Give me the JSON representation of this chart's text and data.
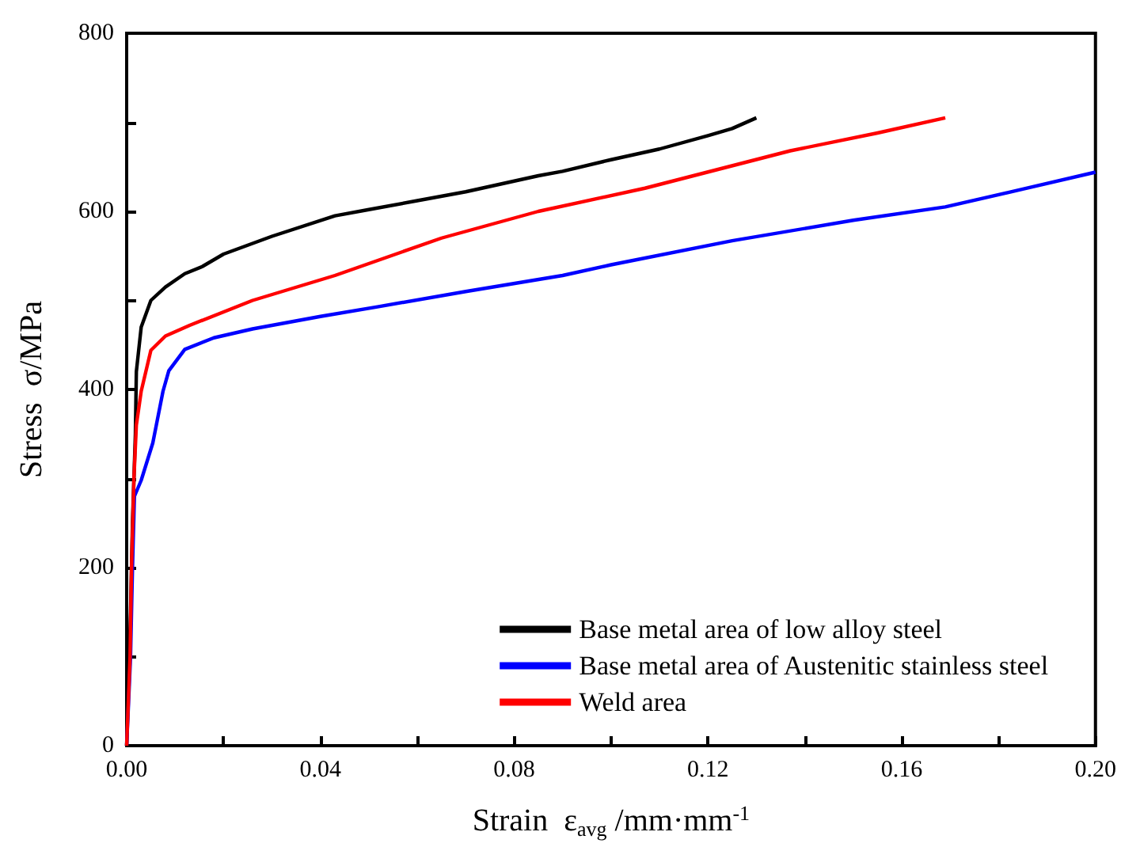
{
  "chart_data": {
    "type": "line",
    "xlabel": "Strain  ε$_{avg}$ /mm·mm$^{-1}$",
    "ylabel": "Stress  σ/MPa",
    "xlim": [
      0,
      0.2
    ],
    "ylim": [
      0,
      800
    ],
    "xticks": [
      "0.00",
      {
        "value": 0.02,
        "label": null
      },
      {
        "value": 0.04,
        "label": "0.04"
      },
      {
        "value": 0.06,
        "label": null
      },
      {
        "value": 0.08,
        "label": "0.08"
      },
      {
        "value": 0.1,
        "label": null
      },
      {
        "value": 0.12,
        "label": "0.12"
      },
      {
        "value": 0.14,
        "label": null
      },
      {
        "value": 0.16,
        "label": "0.16"
      },
      {
        "value": 0.18,
        "label": null
      },
      {
        "value": 0.2,
        "label": "0.20"
      }
    ],
    "yticks": [
      0,
      {
        "value": 100,
        "label": null
      },
      200,
      {
        "value": 300,
        "label": null
      },
      400,
      {
        "value": 500,
        "label": null
      },
      600,
      {
        "value": 700,
        "label": null
      },
      800
    ],
    "grid": false,
    "legend": "bottom right",
    "marker": "none",
    "line_style": "solid",
    "series": [
      {
        "name": "Base metal area of low alloy steel",
        "color": "#000000",
        "x": [
          0,
          0.0008,
          0.0012,
          0.0018,
          0.002,
          0.003,
          0.005,
          0.008,
          0.012,
          0.0156,
          0.02,
          0.03,
          0.043,
          0.05,
          0.06,
          0.07,
          0.085,
          0.09,
          0.1,
          0.11,
          0.12,
          0.125,
          0.13
        ],
        "values": [
          0,
          150,
          250,
          350,
          420,
          470,
          500,
          515,
          530,
          538,
          552,
          572,
          595,
          602,
          612,
          622,
          640,
          645,
          658,
          670,
          685,
          693,
          705
        ]
      },
      {
        "name": "Base metal area of Austenitic stainless steel",
        "color": "#0000ff",
        "x": [
          0,
          0.0008,
          0.0012,
          0.0016,
          0.003,
          0.0054,
          0.0075,
          0.0087,
          0.012,
          0.018,
          0.026,
          0.04,
          0.052,
          0.07,
          0.09,
          0.1,
          0.125,
          0.15,
          0.169,
          0.185,
          0.2
        ],
        "values": [
          0,
          100,
          200,
          280,
          298,
          340,
          398,
          421,
          445,
          458,
          468,
          482,
          493,
          510,
          528,
          540,
          567,
          590,
          605,
          625,
          644
        ]
      },
      {
        "name": "Weld area",
        "color": "#ff0000",
        "x": [
          0,
          0.0007,
          0.001,
          0.0015,
          0.002,
          0.003,
          0.005,
          0.008,
          0.013,
          0.026,
          0.043,
          0.065,
          0.085,
          0.107,
          0.137,
          0.155,
          0.169
        ],
        "values": [
          0,
          100,
          200,
          300,
          360,
          398,
          444,
          460,
          472,
          500,
          528,
          570,
          600,
          626,
          668,
          688,
          705
        ]
      }
    ]
  }
}
